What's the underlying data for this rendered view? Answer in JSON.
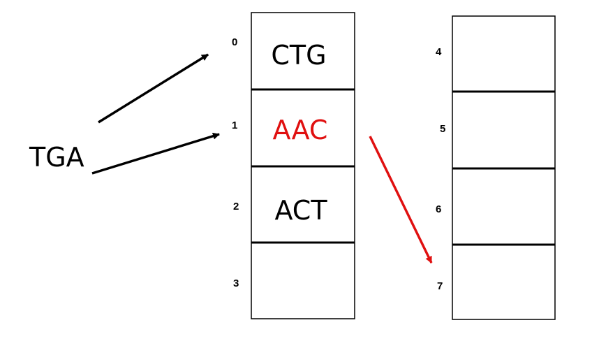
{
  "key": {
    "label": "TGA"
  },
  "left_table": [
    {
      "index": "0",
      "value": "CTG",
      "highlight": false
    },
    {
      "index": "1",
      "value": "AAC",
      "highlight": true
    },
    {
      "index": "2",
      "value": "ACT",
      "highlight": false
    },
    {
      "index": "3",
      "value": "",
      "highlight": false
    }
  ],
  "right_table": [
    {
      "index": "4",
      "value": ""
    },
    {
      "index": "5",
      "value": ""
    },
    {
      "index": "6",
      "value": ""
    },
    {
      "index": "7",
      "value": ""
    }
  ],
  "colors": {
    "normal": "#000000",
    "highlight": "#e01010",
    "arrow_black": "#000000",
    "arrow_red": "#e01010"
  }
}
